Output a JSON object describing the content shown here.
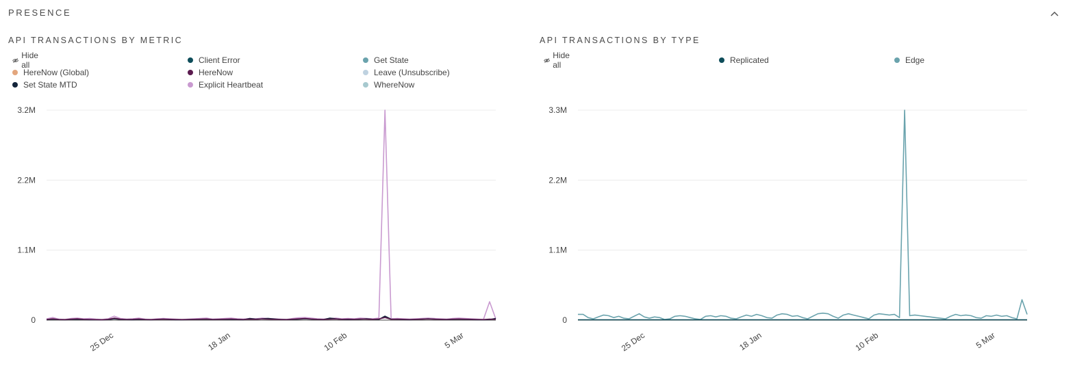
{
  "section": {
    "title": "PRESENCE"
  },
  "icons": {
    "collapse": "chevron-up-icon",
    "hide": "eye-off-icon"
  },
  "charts": {
    "metric": {
      "title": "API TRANSACTIONS BY METRIC",
      "hide_all_label": "Hide all",
      "legend": [
        {
          "label": "Client Error",
          "color": "#0e4d5a"
        },
        {
          "label": "Get State",
          "color": "#6aa3ad"
        },
        {
          "label": "HereNow (Global)",
          "color": "#e3a67d"
        },
        {
          "label": "HereNow",
          "color": "#5b1b4f"
        },
        {
          "label": "Leave (Unsubscribe)",
          "color": "#bfd2e0"
        },
        {
          "label": "Set State MTD",
          "color": "#13243a"
        },
        {
          "label": "Explicit Heartbeat",
          "color": "#c99ad0"
        },
        {
          "label": "WhereNow",
          "color": "#a7c9cf"
        }
      ]
    },
    "type": {
      "title": "API TRANSACTIONS BY TYPE",
      "hide_all_label": "Hide all",
      "legend": [
        {
          "label": "Replicated",
          "color": "#0e4d5a"
        },
        {
          "label": "Edge",
          "color": "#6aa3ad"
        }
      ]
    }
  },
  "chart_data": [
    {
      "type": "line",
      "title": "API TRANSACTIONS BY METRIC",
      "x_tick_labels": [
        "25 Dec",
        "18 Jan",
        "10 Feb",
        "5 Mar"
      ],
      "y_tick_labels": [
        "0",
        "1.1M",
        "2.2M",
        "3.2M"
      ],
      "ylim": [
        0,
        3200000
      ],
      "grid": true,
      "series": [
        {
          "name": "Explicit Heartbeat",
          "color": "#c99ad0",
          "values": [
            20000,
            40000,
            15000,
            10000,
            25000,
            30000,
            20000,
            25000,
            15000,
            10000,
            20000,
            60000,
            25000,
            15000,
            20000,
            30000,
            15000,
            10000,
            20000,
            25000,
            20000,
            15000,
            10000,
            15000,
            20000,
            25000,
            30000,
            15000,
            20000,
            25000,
            30000,
            20000,
            15000,
            25000,
            20000,
            30000,
            25000,
            20000,
            15000,
            10000,
            25000,
            35000,
            40000,
            30000,
            20000,
            15000,
            25000,
            30000,
            20000,
            25000,
            20000,
            30000,
            25000,
            20000,
            30000,
            3200000,
            20000,
            25000,
            20000,
            15000,
            20000,
            25000,
            30000,
            25000,
            20000,
            15000,
            25000,
            30000,
            25000,
            20000,
            15000,
            10000,
            280000,
            20000
          ]
        },
        {
          "name": "Set State MTD",
          "color": "#13243a",
          "values": [
            5000,
            15000,
            8000,
            5000,
            10000,
            12000,
            8000,
            6000,
            5000,
            4000,
            8000,
            20000,
            10000,
            8000,
            6000,
            10000,
            8000,
            5000,
            10000,
            15000,
            8000,
            6000,
            5000,
            8000,
            10000,
            12000,
            15000,
            8000,
            10000,
            12000,
            10000,
            8000,
            6000,
            25000,
            15000,
            20000,
            25000,
            18000,
            10000,
            8000,
            10000,
            15000,
            20000,
            15000,
            10000,
            8000,
            30000,
            20000,
            10000,
            8000,
            10000,
            15000,
            20000,
            12000,
            10000,
            60000,
            15000,
            10000,
            8000,
            6000,
            10000,
            15000,
            20000,
            15000,
            10000,
            8000,
            10000,
            15000,
            10000,
            8000,
            5000,
            5000,
            8000,
            25000
          ]
        },
        {
          "name": "HereNow",
          "color": "#5b1b4f",
          "values": [
            10000,
            20000,
            10000,
            8000,
            15000,
            20000,
            12000,
            10000,
            8000,
            6000,
            12000,
            30000,
            15000,
            10000,
            12000,
            18000,
            10000,
            8000,
            12000,
            15000,
            12000,
            10000,
            8000,
            10000,
            12000,
            15000,
            18000,
            10000,
            12000,
            15000,
            18000,
            12000,
            10000,
            15000,
            12000,
            18000,
            15000,
            12000,
            10000,
            8000,
            15000,
            20000,
            25000,
            18000,
            12000,
            10000,
            15000,
            18000,
            12000,
            15000,
            12000,
            18000,
            15000,
            12000,
            18000,
            40000,
            12000,
            15000,
            12000,
            10000,
            12000,
            15000,
            18000,
            15000,
            12000,
            10000,
            15000,
            18000,
            15000,
            12000,
            10000,
            8000,
            15000,
            12000
          ]
        }
      ]
    },
    {
      "type": "line",
      "title": "API TRANSACTIONS BY TYPE",
      "x_tick_labels": [
        "25 Dec",
        "18 Jan",
        "10 Feb",
        "5 Mar"
      ],
      "y_tick_labels": [
        "0",
        "1.1M",
        "2.2M",
        "3.3M"
      ],
      "ylim": [
        0,
        3300000
      ],
      "grid": true,
      "series": [
        {
          "name": "Edge",
          "color": "#6aa3ad",
          "values": [
            90000,
            90000,
            40000,
            20000,
            50000,
            80000,
            70000,
            40000,
            60000,
            30000,
            20000,
            60000,
            100000,
            50000,
            30000,
            50000,
            40000,
            10000,
            20000,
            60000,
            70000,
            60000,
            40000,
            20000,
            10000,
            60000,
            70000,
            50000,
            70000,
            60000,
            30000,
            20000,
            50000,
            80000,
            60000,
            90000,
            70000,
            40000,
            30000,
            80000,
            100000,
            90000,
            60000,
            70000,
            40000,
            20000,
            60000,
            100000,
            110000,
            100000,
            60000,
            30000,
            80000,
            100000,
            80000,
            60000,
            40000,
            20000,
            80000,
            100000,
            90000,
            80000,
            90000,
            40000,
            3300000,
            70000,
            80000,
            70000,
            60000,
            50000,
            40000,
            30000,
            20000,
            60000,
            90000,
            70000,
            80000,
            70000,
            40000,
            30000,
            70000,
            60000,
            80000,
            60000,
            70000,
            40000,
            20000,
            320000,
            90000
          ]
        },
        {
          "name": "Replicated",
          "color": "#0e4d5a",
          "values": [
            5000,
            5000,
            5000,
            5000,
            5000,
            5000,
            5000,
            5000,
            5000,
            5000,
            5000,
            5000,
            5000,
            5000,
            5000,
            5000,
            5000,
            5000,
            5000,
            5000,
            5000,
            5000,
            5000,
            5000,
            5000,
            5000,
            5000,
            5000,
            5000,
            5000,
            5000,
            5000,
            5000,
            5000,
            5000,
            5000,
            5000,
            5000,
            5000,
            5000,
            5000,
            5000,
            5000,
            5000,
            5000,
            5000,
            5000,
            5000,
            5000,
            5000,
            5000,
            5000,
            5000,
            5000,
            5000,
            5000,
            5000,
            5000,
            5000,
            5000,
            5000,
            5000,
            5000,
            5000,
            5000,
            5000,
            5000,
            5000,
            5000,
            5000,
            5000,
            5000,
            5000,
            5000,
            5000,
            5000,
            5000,
            5000,
            5000,
            5000,
            5000,
            5000,
            5000,
            5000,
            5000,
            5000,
            5000,
            5000,
            5000
          ]
        }
      ]
    }
  ]
}
